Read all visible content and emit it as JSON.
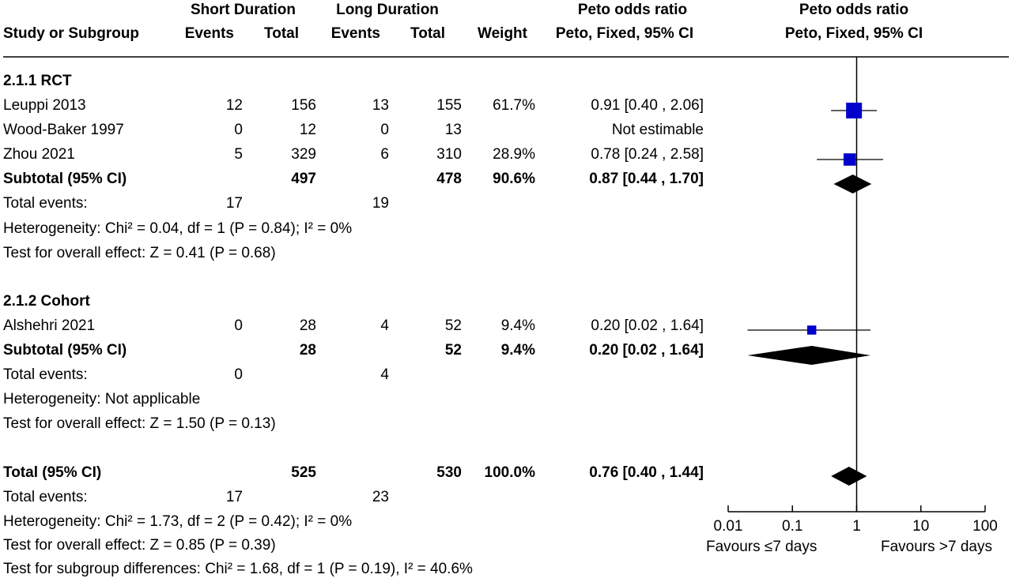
{
  "header": {
    "group1": "Short Duration",
    "group2": "Long Duration",
    "or_label": "Peto odds ratio",
    "or_plot_label": "Peto odds ratio",
    "study_col": "Study or Subgroup",
    "events1": "Events",
    "total1": "Total",
    "events2": "Events",
    "total2": "Total",
    "weight": "Weight",
    "method": "Peto, Fixed, 95% CI",
    "method_plot": "Peto, Fixed, 95% CI"
  },
  "subgroups": [
    {
      "title": "2.1.1 RCT",
      "studies": [
        {
          "name": "Leuppi 2013",
          "e1": "12",
          "n1": "156",
          "e2": "13",
          "n2": "155",
          "weight": "61.7%",
          "ci": "0.91 [0.40 , 2.06]"
        },
        {
          "name": "Wood-Baker 1997",
          "e1": "0",
          "n1": "12",
          "e2": "0",
          "n2": "13",
          "weight": "",
          "ci": "Not estimable"
        },
        {
          "name": "Zhou 2021",
          "e1": "5",
          "n1": "329",
          "e2": "6",
          "n2": "310",
          "weight": "28.9%",
          "ci": "0.78 [0.24 , 2.58]"
        }
      ],
      "subtotal": {
        "label": "Subtotal (95% CI)",
        "n1": "497",
        "n2": "478",
        "weight": "90.6%",
        "ci": "0.87 [0.44 , 1.70]"
      },
      "total_events": {
        "label": "Total events:",
        "e1": "17",
        "e2": "19"
      },
      "heterogeneity": "Heterogeneity: Chi² = 0.04, df = 1 (P = 0.84); I² = 0%",
      "overall": "Test for overall effect: Z = 0.41 (P = 0.68)"
    },
    {
      "title": "2.1.2 Cohort",
      "studies": [
        {
          "name": "Alshehri 2021",
          "e1": "0",
          "n1": "28",
          "e2": "4",
          "n2": "52",
          "weight": "9.4%",
          "ci": "0.20 [0.02 , 1.64]"
        }
      ],
      "subtotal": {
        "label": "Subtotal (95% CI)",
        "n1": "28",
        "n2": "52",
        "weight": "9.4%",
        "ci": "0.20 [0.02 , 1.64]"
      },
      "total_events": {
        "label": "Total events:",
        "e1": "0",
        "e2": "4"
      },
      "heterogeneity": "Heterogeneity: Not applicable",
      "overall": "Test for overall effect: Z = 1.50 (P = 0.13)"
    }
  ],
  "total": {
    "label": "Total (95% CI)",
    "n1": "525",
    "n2": "530",
    "weight": "100.0%",
    "ci": "0.76 [0.40 , 1.44]",
    "total_events": {
      "label": "Total events:",
      "e1": "17",
      "e2": "23"
    },
    "heterogeneity": "Heterogeneity: Chi² = 1.73, df = 2 (P = 0.42); I² = 0%",
    "overall": "Test for overall effect: Z = 0.85 (P = 0.39)",
    "subgroup_diff": "Test for subgroup differences: Chi² = 1.68, df = 1 (P = 0.19), I² = 40.6%"
  },
  "axis": {
    "ticks": [
      "0.01",
      "0.1",
      "1",
      "10",
      "100"
    ],
    "left_label": "Favours ≤7 days",
    "right_label": "Favours >7 days"
  },
  "colors": {
    "square": "#0000cc",
    "diamond": "#000000",
    "line": "#000000"
  },
  "chart_data": {
    "type": "forest",
    "scale": "log",
    "xlim": [
      0.01,
      100
    ],
    "null_line": 1,
    "xticks": [
      0.01,
      0.1,
      1,
      10,
      100
    ],
    "studies": [
      {
        "name": "Leuppi 2013",
        "or": 0.91,
        "lo": 0.4,
        "hi": 2.06,
        "weight": 61.7
      },
      {
        "name": "Zhou 2021",
        "or": 0.78,
        "lo": 0.24,
        "hi": 2.58,
        "weight": 28.9
      },
      {
        "name": "Alshehri 2021",
        "or": 0.2,
        "lo": 0.02,
        "hi": 1.64,
        "weight": 9.4
      }
    ],
    "pooled": [
      {
        "name": "Subtotal RCT",
        "or": 0.87,
        "lo": 0.44,
        "hi": 1.7
      },
      {
        "name": "Subtotal Cohort",
        "or": 0.2,
        "lo": 0.02,
        "hi": 1.64
      },
      {
        "name": "Total",
        "or": 0.76,
        "lo": 0.4,
        "hi": 1.44
      }
    ]
  }
}
